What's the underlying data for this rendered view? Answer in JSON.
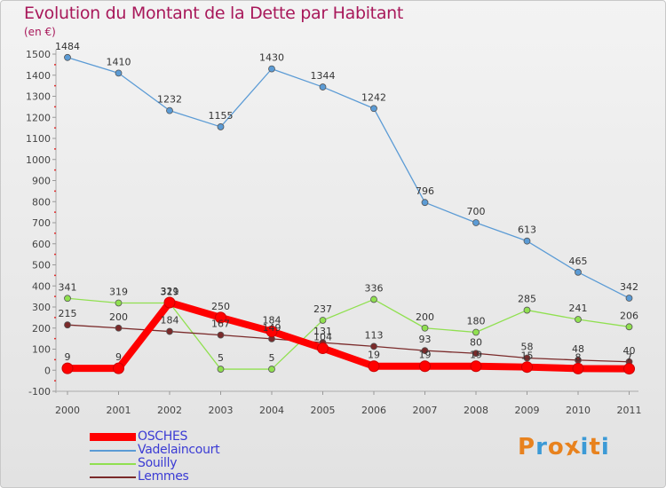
{
  "title": "Evolution du Montant de la Dette par Habitant",
  "subtitle": "(en €)",
  "logo": {
    "text": "Proxiti",
    "colors": [
      "#e8821e",
      "#3c9ad6",
      "#e8821e",
      "#e8821e",
      "#3c9ad6",
      "#e8821e",
      "#3c9ad6"
    ]
  },
  "chart_data": {
    "type": "line",
    "x": [
      "2000",
      "2001",
      "2002",
      "2003",
      "2004",
      "2005",
      "2006",
      "2007",
      "2008",
      "2009",
      "2010",
      "2011"
    ],
    "ylim": [
      -100,
      1500
    ],
    "yticks": [
      "-100",
      "0",
      "100",
      "200",
      "300",
      "400",
      "500",
      "600",
      "700",
      "800",
      "900",
      "1000",
      "1100",
      "1200",
      "1300",
      "1400",
      "1500"
    ],
    "grid": false,
    "legend_position": "bottom-left",
    "series": [
      {
        "name": "OSCHES",
        "color": "#ff0000",
        "values": [
          9,
          9,
          321,
          250,
          184,
          104,
          19,
          19,
          19,
          15,
          8,
          7
        ],
        "labels": [
          "9",
          "9",
          "321",
          "250",
          "184",
          "104",
          "19",
          "19",
          "19",
          "15",
          "8",
          "7"
        ]
      },
      {
        "name": "Vadelaincourt",
        "color": "#5b9bd5",
        "values": [
          1484,
          1410,
          1232,
          1155,
          1430,
          1344,
          1242,
          796,
          700,
          613,
          465,
          342
        ],
        "labels": [
          "1484",
          "1410",
          "1232",
          "1155",
          "1430",
          "1344",
          "1242",
          "796",
          "700",
          "613",
          "465",
          "342"
        ]
      },
      {
        "name": "Souilly",
        "color": "#90e050",
        "values": [
          341,
          319,
          319,
          5,
          5,
          237,
          336,
          200,
          180,
          285,
          241,
          206
        ],
        "labels": [
          "341",
          "319",
          "319",
          "5",
          "5",
          "237",
          "336",
          "200",
          "180",
          "285",
          "241",
          "206"
        ]
      },
      {
        "name": "Lemmes",
        "color": "#7a2a2a",
        "values": [
          215,
          200,
          184,
          167,
          149,
          131,
          113,
          93,
          80,
          58,
          48,
          40
        ],
        "labels": [
          "215",
          "200",
          "184",
          "167",
          "149",
          "131",
          "113",
          "93",
          "80",
          "58",
          "48",
          "40"
        ]
      }
    ]
  }
}
